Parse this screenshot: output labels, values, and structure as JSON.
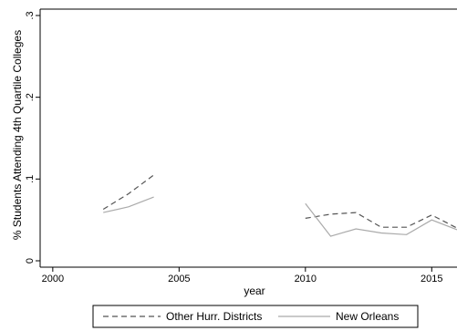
{
  "chart_data": {
    "type": "line",
    "xlabel": "year",
    "ylabel": "% Students Attending 4th Quartile Colleges",
    "xlim": [
      1999.5,
      2016
    ],
    "ylim": [
      0,
      0.3
    ],
    "xticks": [
      {
        "value": 2000,
        "label": "2000"
      },
      {
        "value": 2005,
        "label": "2005"
      },
      {
        "value": 2010,
        "label": "2010"
      },
      {
        "value": 2015,
        "label": "2015"
      }
    ],
    "yticks": [
      {
        "value": 0,
        "label": "0"
      },
      {
        "value": 0.1,
        "label": ".1"
      },
      {
        "value": 0.2,
        "label": ".2"
      },
      {
        "value": 0.3,
        "label": ".3"
      }
    ],
    "grid": false,
    "legend_position": "bottom",
    "series": [
      {
        "name": "Other Hurr. Districts",
        "style": "dashed",
        "color": "#555555",
        "segments": [
          [
            [
              2002,
              0.063
            ],
            [
              2003,
              0.082
            ],
            [
              2004,
              0.105
            ]
          ],
          [
            [
              2010,
              0.052
            ],
            [
              2011,
              0.057
            ],
            [
              2012,
              0.059
            ],
            [
              2013,
              0.041
            ],
            [
              2014,
              0.041
            ],
            [
              2015,
              0.056
            ],
            [
              2016,
              0.04
            ]
          ]
        ]
      },
      {
        "name": "New Orleans",
        "style": "solid",
        "color": "#aaaaaa",
        "segments": [
          [
            [
              2002,
              0.059
            ],
            [
              2003,
              0.066
            ],
            [
              2004,
              0.078
            ]
          ],
          [
            [
              2010,
              0.07
            ],
            [
              2011,
              0.03
            ],
            [
              2012,
              0.039
            ],
            [
              2013,
              0.034
            ],
            [
              2014,
              0.032
            ],
            [
              2015,
              0.05
            ],
            [
              2016,
              0.038
            ]
          ]
        ]
      }
    ]
  }
}
